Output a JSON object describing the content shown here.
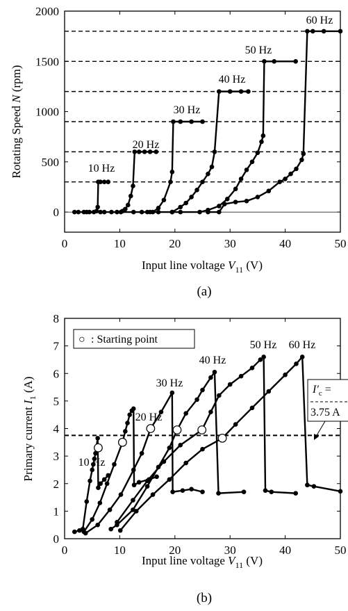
{
  "chart_data": [
    {
      "type": "line",
      "caption": "(a)",
      "xlabel": "Input line voltage V11 (V)",
      "xlabel_main": "Input line voltage ",
      "xlabel_var": "V",
      "xlabel_sub": "11",
      "xlabel_unit": " (V)",
      "ylabel": "Rotating Speed N (rpm)",
      "ylabel_main": "Rotating Speed ",
      "ylabel_var": "N",
      "ylabel_unit": " (rpm)",
      "xlim": [
        0,
        50
      ],
      "ylim": [
        -200,
        2000
      ],
      "xticks": [
        0,
        10,
        20,
        30,
        40,
        50
      ],
      "yticks": [
        0,
        500,
        1000,
        1500,
        2000
      ],
      "reference_lines": [
        300,
        600,
        900,
        1200,
        1500,
        1800
      ],
      "series": [
        {
          "name": "10 Hz",
          "points": [
            [
              1.8,
              0
            ],
            [
              2.5,
              0
            ],
            [
              3.5,
              0
            ],
            [
              4.5,
              0
            ],
            [
              5.3,
              0
            ],
            [
              5.8,
              10
            ],
            [
              6.0,
              50
            ],
            [
              6.1,
              300
            ],
            [
              6.5,
              300
            ],
            [
              7.2,
              300
            ],
            [
              7.9,
              300
            ]
          ]
        },
        {
          "name": "20 Hz",
          "points": [
            [
              4.0,
              0
            ],
            [
              6.5,
              0
            ],
            [
              7.2,
              0
            ],
            [
              8.5,
              0
            ],
            [
              9.5,
              0
            ],
            [
              10.5,
              10
            ],
            [
              11.0,
              30
            ],
            [
              11.5,
              70
            ],
            [
              12.0,
              160
            ],
            [
              12.4,
              260
            ],
            [
              12.7,
              600
            ],
            [
              13.5,
              600
            ],
            [
              14.5,
              600
            ],
            [
              15.5,
              600
            ],
            [
              16.6,
              600
            ]
          ]
        },
        {
          "name": "30 Hz",
          "points": [
            [
              10.2,
              0
            ],
            [
              12.5,
              0
            ],
            [
              14.0,
              0
            ],
            [
              15.0,
              0
            ],
            [
              16.0,
              0
            ],
            [
              17.0,
              40
            ],
            [
              18.0,
              120
            ],
            [
              19.2,
              300
            ],
            [
              19.5,
              400
            ],
            [
              19.7,
              900
            ],
            [
              21.0,
              900
            ],
            [
              23.0,
              900
            ],
            [
              25.0,
              900
            ]
          ]
        },
        {
          "name": "40 Hz",
          "points": [
            [
              15.5,
              0
            ],
            [
              17.0,
              0
            ],
            [
              19.5,
              0
            ],
            [
              21.0,
              50
            ],
            [
              22.0,
              90
            ],
            [
              23.0,
              150
            ],
            [
              24.0,
              220
            ],
            [
              25.0,
              300
            ],
            [
              26.0,
              380
            ],
            [
              26.7,
              450
            ],
            [
              27.2,
              600
            ],
            [
              28.0,
              1200
            ],
            [
              30.0,
              1200
            ],
            [
              32.0,
              1200
            ],
            [
              33.3,
              1200
            ]
          ]
        },
        {
          "name": "50 Hz",
          "points": [
            [
              19.5,
              0
            ],
            [
              21.0,
              0
            ],
            [
              24.5,
              0
            ],
            [
              26.0,
              20
            ],
            [
              28.0,
              60
            ],
            [
              29.5,
              130
            ],
            [
              31.0,
              230
            ],
            [
              32.0,
              330
            ],
            [
              33.0,
              420
            ],
            [
              34.0,
              500
            ],
            [
              35.0,
              590
            ],
            [
              35.7,
              700
            ],
            [
              36.0,
              760
            ],
            [
              36.2,
              1500
            ],
            [
              38.0,
              1500
            ],
            [
              41.9,
              1500
            ]
          ]
        },
        {
          "name": "60 Hz",
          "points": [
            [
              26.0,
              0
            ],
            [
              28.0,
              0
            ],
            [
              29.0,
              80
            ],
            [
              31.0,
              100
            ],
            [
              33.0,
              110
            ],
            [
              35.0,
              150
            ],
            [
              37.0,
              210
            ],
            [
              39.0,
              300
            ],
            [
              40.0,
              330
            ],
            [
              41.0,
              380
            ],
            [
              42.0,
              430
            ],
            [
              43.0,
              520
            ],
            [
              43.3,
              580
            ],
            [
              44.0,
              1800
            ],
            [
              45.0,
              1800
            ],
            [
              47.0,
              1800
            ],
            [
              50.0,
              1800
            ]
          ]
        }
      ]
    },
    {
      "type": "line",
      "caption": "(b)",
      "xlabel": "Input line voltage V11 (V)",
      "xlabel_main": "Input line voltage ",
      "xlabel_var": "V",
      "xlabel_sub": "11",
      "xlabel_unit": " (V)",
      "ylabel": "Primary current I1 (A)",
      "ylabel_main": "Primary current ",
      "ylabel_var": "I",
      "ylabel_sub": "1",
      "ylabel_unit": " (A)",
      "xlim": [
        0,
        50
      ],
      "ylim": [
        0,
        8
      ],
      "xticks": [
        0,
        10,
        20,
        30,
        40,
        50
      ],
      "yticks": [
        0,
        1,
        2,
        3,
        4,
        5,
        6,
        7,
        8
      ],
      "legend": {
        "marker": "○",
        "text": ": Starting point",
        "position": "top-left"
      },
      "reference_line": {
        "value": 3.75,
        "label_line1_var": "I′",
        "label_line1_sub": "c",
        "label_line1_tail": " =",
        "label_line2": "3.75 A"
      },
      "starting_points": [
        [
          6.1,
          3.3
        ],
        [
          10.5,
          3.5
        ],
        [
          15.6,
          4.0
        ],
        [
          20.4,
          3.95
        ],
        [
          24.9,
          3.95
        ],
        [
          28.6,
          3.65
        ]
      ],
      "series": [
        {
          "name": "10 Hz",
          "points": [
            [
              1.8,
              0.25
            ],
            [
              2.7,
              0.3
            ],
            [
              3.3,
              0.35
            ],
            [
              4.0,
              1.35
            ],
            [
              4.6,
              2.1
            ],
            [
              5.0,
              2.5
            ],
            [
              5.2,
              2.7
            ],
            [
              5.4,
              2.9
            ],
            [
              5.6,
              3.1
            ],
            [
              6.0,
              3.65
            ],
            [
              6.1,
              1.85
            ],
            [
              6.5,
              2.0
            ],
            [
              7.2,
              2.15
            ],
            [
              7.9,
              2.3
            ]
          ]
        },
        {
          "name": "20 Hz",
          "points": [
            [
              3.5,
              0.25
            ],
            [
              5.0,
              0.7
            ],
            [
              6.4,
              1.3
            ],
            [
              7.7,
              2.0
            ],
            [
              9.0,
              2.7
            ],
            [
              10.5,
              3.5
            ],
            [
              11.0,
              3.9
            ],
            [
              11.4,
              4.2
            ],
            [
              11.8,
              4.5
            ],
            [
              12.2,
              4.65
            ],
            [
              12.5,
              4.72
            ],
            [
              12.6,
              1.95
            ],
            [
              13.5,
              2.05
            ],
            [
              15.3,
              2.15
            ],
            [
              16.7,
              2.25
            ]
          ]
        },
        {
          "name": "30 Hz",
          "points": [
            [
              3.8,
              0.2
            ],
            [
              6.0,
              0.5
            ],
            [
              8.2,
              1.05
            ],
            [
              10.2,
              1.6
            ],
            [
              12.5,
              2.5
            ],
            [
              14.0,
              3.1
            ],
            [
              15.6,
              4.0
            ],
            [
              17.5,
              4.6
            ],
            [
              19.5,
              5.3
            ],
            [
              19.6,
              1.7
            ],
            [
              21.4,
              1.75
            ],
            [
              23.0,
              1.8
            ],
            [
              25.0,
              1.7
            ]
          ]
        },
        {
          "name": "40 Hz",
          "points": [
            [
              8.4,
              0.35
            ],
            [
              9.5,
              0.5
            ],
            [
              12.4,
              1.05
            ],
            [
              15.0,
              1.9
            ],
            [
              17.0,
              2.6
            ],
            [
              19.0,
              3.3
            ],
            [
              20.4,
              3.95
            ],
            [
              22.0,
              4.55
            ],
            [
              24.0,
              5.05
            ],
            [
              25.0,
              5.4
            ],
            [
              26.5,
              5.85
            ],
            [
              27.2,
              6.05
            ],
            [
              27.9,
              1.65
            ],
            [
              32.5,
              1.7
            ]
          ]
        },
        {
          "name": "50 Hz",
          "points": [
            [
              9.5,
              0.6
            ],
            [
              12.4,
              1.4
            ],
            [
              15.0,
              2.1
            ],
            [
              18.0,
              2.8
            ],
            [
              21.0,
              3.4
            ],
            [
              24.9,
              3.95
            ],
            [
              26.5,
              4.6
            ],
            [
              28.0,
              5.2
            ],
            [
              30.0,
              5.6
            ],
            [
              32.0,
              5.9
            ],
            [
              34.0,
              6.2
            ],
            [
              35.5,
              6.5
            ],
            [
              36.1,
              6.6
            ],
            [
              36.4,
              1.75
            ],
            [
              37.5,
              1.7
            ],
            [
              41.9,
              1.65
            ]
          ]
        },
        {
          "name": "60 Hz",
          "points": [
            [
              10.1,
              0.3
            ],
            [
              13.0,
              1.0
            ],
            [
              16.0,
              1.6
            ],
            [
              19.0,
              2.15
            ],
            [
              22.0,
              2.75
            ],
            [
              25.0,
              3.25
            ],
            [
              28.6,
              3.65
            ],
            [
              31.0,
              4.15
            ],
            [
              34.0,
              4.75
            ],
            [
              37.0,
              5.35
            ],
            [
              40.0,
              5.95
            ],
            [
              42.0,
              6.35
            ],
            [
              43.1,
              6.6
            ],
            [
              44.0,
              1.95
            ],
            [
              45.2,
              1.9
            ],
            [
              50.0,
              1.72
            ]
          ]
        }
      ]
    }
  ]
}
